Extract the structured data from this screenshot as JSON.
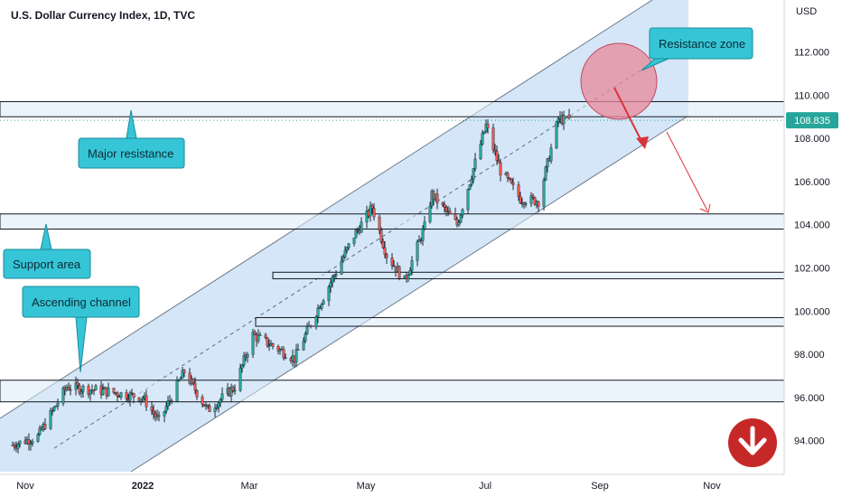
{
  "title": "U.S. Dollar Currency Index, 1D, TVC",
  "currency": "USD",
  "last_price_label": "108.835",
  "colors": {
    "up": "#26a69a",
    "down": "#ef5350",
    "channel_fill": "#cfe3f7",
    "callout": "#36c5d6",
    "zone_circle": "#e8889a",
    "arrow": "#d9343a",
    "badge": "#c62828"
  },
  "annotations": {
    "major_resistance": "Major resistance",
    "support_area": "Support area",
    "ascending_channel": "Ascending channel",
    "resistance_zone": "Resistance zone"
  },
  "icons": {
    "badge": "down-arrow-icon"
  },
  "chart_data": {
    "type": "candlestick",
    "ylim": [
      92.8,
      114.0
    ],
    "y_ticks": [
      "94.000",
      "96.000",
      "98.000",
      "100.000",
      "102.000",
      "104.000",
      "106.000",
      "108.000",
      "110.000",
      "112.000"
    ],
    "x_ticks": [
      "Nov",
      "2022",
      "Mar",
      "May",
      "Jul",
      "Sep",
      "Nov"
    ],
    "last_price": 108.835,
    "support_resistance_boxes": [
      {
        "name": "Major resistance",
        "low": 109.0,
        "high": 109.7
      },
      {
        "name": "Support area",
        "low": 103.8,
        "high": 104.5
      },
      {
        "name": "zone",
        "low": 101.5,
        "high": 101.8
      },
      {
        "name": "zone",
        "low": 99.3,
        "high": 99.7
      },
      {
        "name": "zone",
        "low": 95.8,
        "high": 96.8
      }
    ],
    "price_path": [
      [
        "2021-10-25",
        93.8
      ],
      [
        "2021-11-08",
        94.2
      ],
      [
        "2021-11-24",
        96.5
      ],
      [
        "2021-12-15",
        96.3
      ],
      [
        "2022-01-05",
        96.0
      ],
      [
        "2022-01-14",
        94.9
      ],
      [
        "2022-01-28",
        97.2
      ],
      [
        "2022-02-10",
        95.4
      ],
      [
        "2022-02-25",
        96.5
      ],
      [
        "2022-03-07",
        98.9
      ],
      [
        "2022-03-20",
        98.3
      ],
      [
        "2022-03-30",
        97.8
      ],
      [
        "2022-04-14",
        100.5
      ],
      [
        "2022-05-02",
        103.5
      ],
      [
        "2022-05-12",
        104.8
      ],
      [
        "2022-05-20",
        102.6
      ],
      [
        "2022-05-30",
        101.4
      ],
      [
        "2022-06-10",
        103.9
      ],
      [
        "2022-06-14",
        105.4
      ],
      [
        "2022-06-28",
        104.0
      ],
      [
        "2022-07-14",
        108.6
      ],
      [
        "2022-07-22",
        106.5
      ],
      [
        "2022-08-02",
        105.2
      ],
      [
        "2022-08-12",
        105.1
      ],
      [
        "2022-08-23",
        108.9
      ],
      [
        "2022-08-29",
        108.835
      ]
    ]
  }
}
